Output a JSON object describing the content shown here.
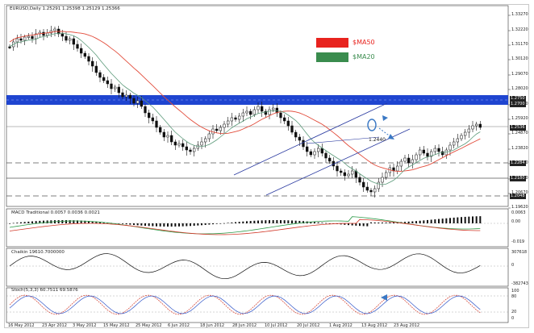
{
  "header": {
    "symbol_text": "EURUSD,Daily  1.25291 1.25398 1.25129 1.25366"
  },
  "price_axis": {
    "labels": [
      "1.33270",
      "1.32220",
      "1.31170",
      "1.30120",
      "1.29070",
      "1.28020",
      "1.26970",
      "1.25920",
      "1.24870",
      "1.23820",
      "1.22770",
      "1.21720",
      "1.20670",
      "1.19620"
    ],
    "levels": [
      {
        "label": "1.2750"
      },
      {
        "label": "1.2700"
      },
      {
        "label": "1.2536"
      },
      {
        "label": "1.2284"
      },
      {
        "label": "1.2180"
      },
      {
        "label": "1.2048"
      }
    ]
  },
  "legend": {
    "sma50": {
      "label": "$MA50",
      "color": "#e8231e"
    },
    "sma20": {
      "label": "$MA20",
      "color": "#3a8c4e"
    }
  },
  "annotation": {
    "price_label": "1.2440"
  },
  "macd": {
    "title": "MACD Traditional 0.0057 0.0036 0.0021",
    "axis": [
      "0.0063",
      "0.00",
      "-0.019"
    ]
  },
  "chaikin": {
    "title": "Chaikin 19610.7000000",
    "axis": [
      "307618",
      "0",
      "-382743"
    ]
  },
  "stoch": {
    "title": "Stoch(5,3,3) 60.7511 69.5876",
    "axis": [
      "100",
      "80",
      "20",
      "0"
    ]
  },
  "time_axis": {
    "labels": [
      "16 May 2012",
      "23 Apr 2012",
      "3 May 2012",
      "15 May 2012",
      "25 May 2012",
      "6 Jun 2012",
      "18 Jun 2012",
      "28 Jun 2012",
      "10 Jul 2012",
      "20 Jul 2012",
      "1 Aug 2012",
      "13 Aug 2012",
      "23 Aug 2012"
    ]
  },
  "colors": {
    "band": "#1f45d0",
    "up": "#ffffff",
    "down": "#111111",
    "sma50": "#e24b3a",
    "sma20": "#5c9a7a",
    "channel": "#2a3aa0",
    "arrow": "#3a78c4"
  }
}
